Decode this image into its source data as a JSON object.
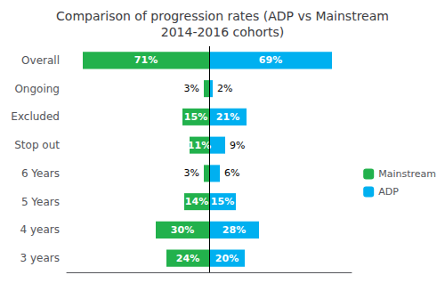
{
  "chart_data": {
    "type": "bar",
    "orientation": "horizontal",
    "title": "Comparison of progression rates (ADP vs Mainstream\n2014-2016 cohorts)",
    "categories": [
      "Overall",
      "Ongoing",
      "Excluded",
      "Stop out",
      "6 Years",
      "5 Years",
      "4 years",
      "3 years"
    ],
    "series": [
      {
        "name": "Mainstream",
        "color": "#22b14c",
        "values": [
          71,
          3,
          15,
          11,
          3,
          14,
          30,
          24
        ],
        "value_labels": [
          "71%",
          "3%",
          "15%",
          "11%",
          "3%",
          "14%",
          "30%",
          "24%"
        ]
      },
      {
        "name": "ADP",
        "color": "#00b0f0",
        "values": [
          69,
          2,
          21,
          9,
          6,
          15,
          28,
          20
        ],
        "value_labels": [
          "69%",
          "2%",
          "21%",
          "9%",
          "6%",
          "15%",
          "28%",
          "20%"
        ]
      }
    ],
    "xlim": [
      -80,
      80
    ],
    "xticks": [],
    "grid": false,
    "legend": "right",
    "data_labels": true,
    "tick_labels": "y"
  }
}
